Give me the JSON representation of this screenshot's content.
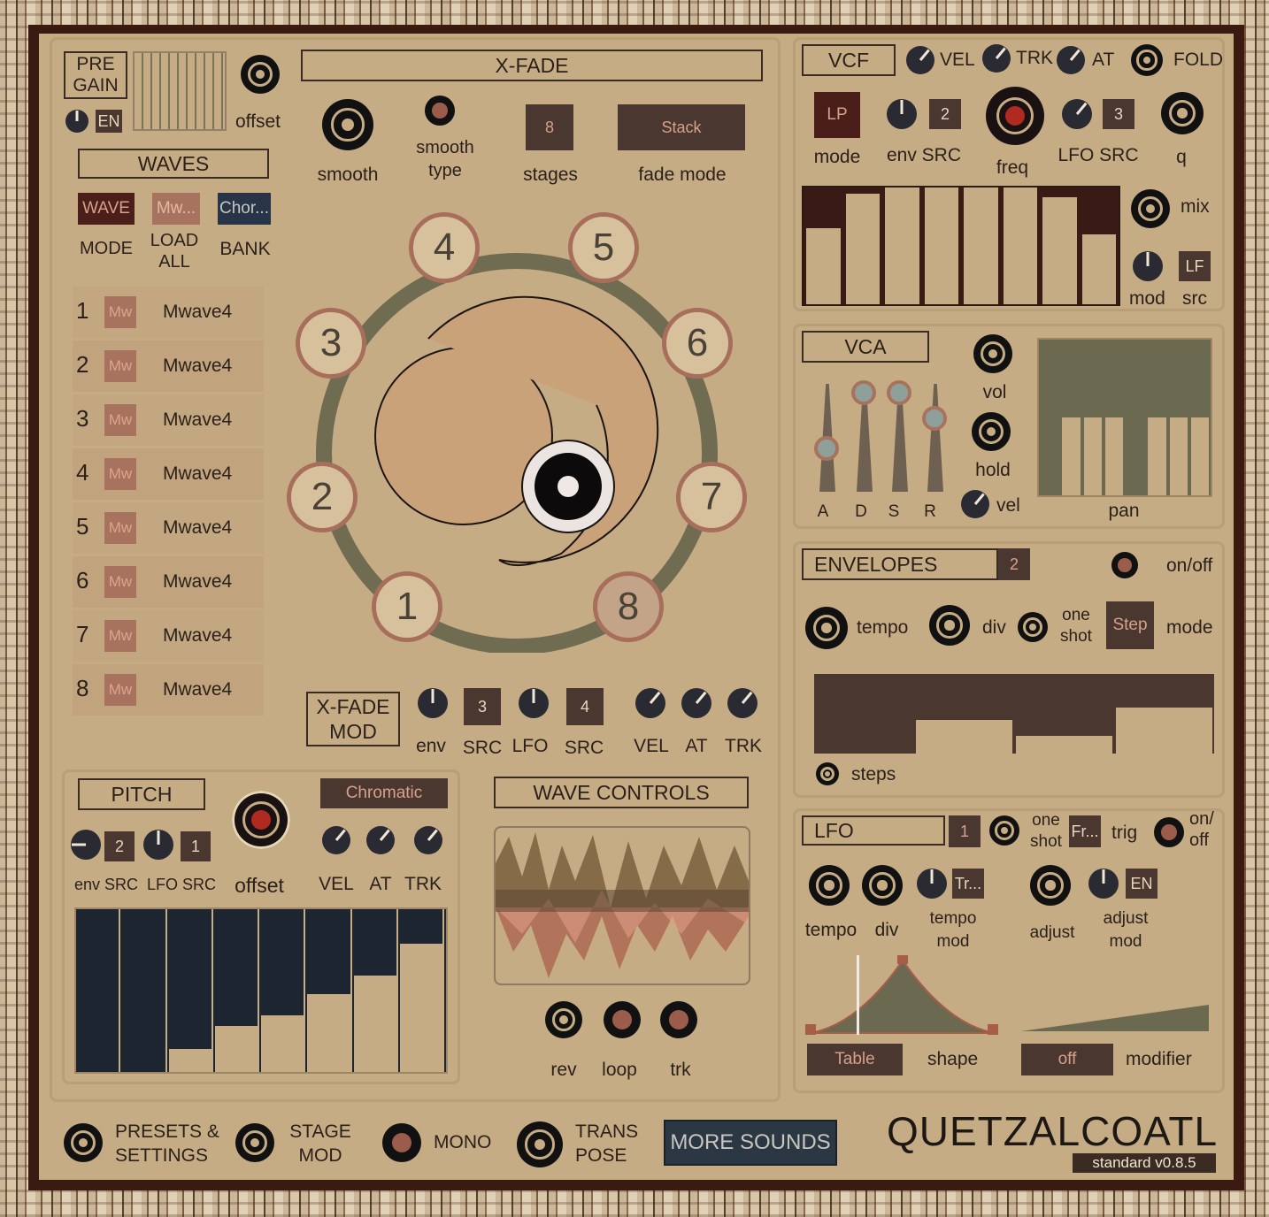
{
  "pregain": {
    "title_line1": "PRE",
    "title_line2": "GAIN",
    "en_label": "EN",
    "offset_label": "offset"
  },
  "waves": {
    "title": "WAVES",
    "mode_btn": "WAVE",
    "load_btn": "Mw...",
    "bank_btn": "Chor...",
    "mode_label": "MODE",
    "load_label_1": "LOAD",
    "load_label_2": "ALL",
    "bank_label": "BANK",
    "rows": [
      {
        "num": "1",
        "badge": "Mw",
        "name": "Mwave4"
      },
      {
        "num": "2",
        "badge": "Mw",
        "name": "Mwave4"
      },
      {
        "num": "3",
        "badge": "Mw",
        "name": "Mwave4"
      },
      {
        "num": "4",
        "badge": "Mw",
        "name": "Mwave4"
      },
      {
        "num": "5",
        "badge": "Mw",
        "name": "Mwave4"
      },
      {
        "num": "6",
        "badge": "Mw",
        "name": "Mwave4"
      },
      {
        "num": "7",
        "badge": "Mw",
        "name": "Mwave4"
      },
      {
        "num": "8",
        "badge": "Mw",
        "name": "Mwave4"
      }
    ]
  },
  "xfade": {
    "title": "X-FADE",
    "smooth_label": "smooth",
    "smooth_type_1": "smooth",
    "smooth_type_2": "type",
    "stages_value": "8",
    "stages_label": "stages",
    "fade_mode_value": "Stack",
    "fade_mode_label": "fade mode",
    "stage_nums": [
      "1",
      "2",
      "3",
      "4",
      "5",
      "6",
      "7",
      "8"
    ]
  },
  "xfade_mod": {
    "title_1": "X-FADE",
    "title_2": "MOD",
    "env": "env",
    "src1_value": "3",
    "src1": "SRC",
    "lfo": "LFO",
    "src2_value": "4",
    "src2": "SRC",
    "vel": "VEL",
    "at": "AT",
    "trk": "TRK"
  },
  "vcf": {
    "title": "VCF",
    "vel": "VEL",
    "trk": "TRK",
    "at": "AT",
    "fold": "FOLD",
    "mode_value": "LP",
    "mode_label": "mode",
    "env_src_value": "2",
    "env_src_label": "env SRC",
    "freq_label": "freq",
    "lfo_src_value": "3",
    "lfo_src_label": "LFO SRC",
    "q_label": "q",
    "mix_label": "mix",
    "mod_label": "mod",
    "src_value": "LF",
    "src_label": "src",
    "bars": [
      0.65,
      0.95,
      1.0,
      1.0,
      1.0,
      1.0,
      0.92,
      0.6
    ]
  },
  "vca": {
    "title": "VCA",
    "a": "A",
    "d": "D",
    "s": "S",
    "r": "R",
    "vol": "vol",
    "hold": "hold",
    "vel": "vel",
    "pan": "pan",
    "adsr": [
      0.4,
      0.92,
      0.92,
      0.68
    ],
    "pan_bars": [
      1.0,
      0.5,
      0.5,
      0.5,
      1.0,
      0.5,
      0.5,
      0.5
    ]
  },
  "envelopes": {
    "title": "ENVELOPES",
    "num": "2",
    "onoff": "on/off",
    "tempo": "tempo",
    "div": "div",
    "one": "one",
    "shot": "shot",
    "mode_value": "Step",
    "mode": "mode",
    "steps": "steps",
    "step_values": [
      0.0,
      0.42,
      0.22,
      0.58
    ]
  },
  "lfo": {
    "title": "LFO",
    "num": "1",
    "one": "one",
    "shot": "shot",
    "trig_value": "Fr...",
    "trig": "trig",
    "on": "on/",
    "off": "off",
    "tempo": "tempo",
    "div": "div",
    "tempo_mod_value": "Tr...",
    "tempo_mod_1": "tempo",
    "tempo_mod_2": "mod",
    "adjust": "adjust",
    "adjust_en": "EN",
    "adjust_mod_1": "adjust",
    "adjust_mod_2": "mod",
    "shape_value": "Table",
    "shape": "shape",
    "modifier_value": "off",
    "modifier": "modifier"
  },
  "pitch": {
    "title": "PITCH",
    "scale": "Chromatic",
    "env_src_value": "2",
    "lfo_src_value": "1",
    "env_src": "env SRC",
    "lfo_src": "LFO SRC",
    "offset": "offset",
    "vel": "VEL",
    "at": "AT",
    "trk": "TRK",
    "bars": [
      0.0,
      0.0,
      0.14,
      0.28,
      0.35,
      0.48,
      0.59,
      0.79
    ]
  },
  "wave_controls": {
    "title": "WAVE CONTROLS",
    "rev": "rev",
    "loop": "loop",
    "trk": "trk"
  },
  "footer": {
    "presets_1": "PRESETS &",
    "presets_2": "SETTINGS",
    "stage_1": "STAGE",
    "stage_2": "MOD",
    "mono": "MONO",
    "trans_1": "TRANS",
    "trans_2": "POSE",
    "more": "MORE SOUNDS",
    "brand": "QUETZALCOATL",
    "version": "standard v0.8.5"
  },
  "colors": {
    "bg": "#c5ac84",
    "dark_btn": "#4a3830",
    "accent": "#a8735e",
    "knob": "#2a2a33",
    "pitch_bg": "#1d2530",
    "olive": "#6b6a50"
  }
}
